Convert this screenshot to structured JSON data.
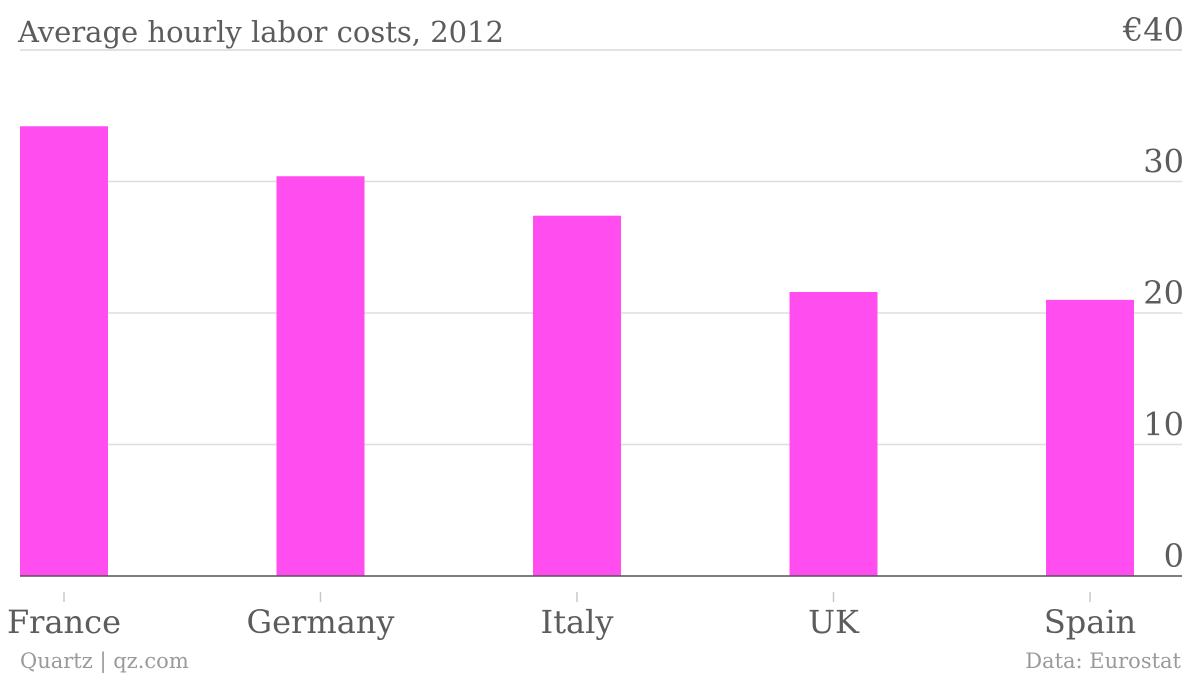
{
  "chart_data": {
    "type": "bar",
    "title": "Average hourly labor costs, 2012",
    "categories": [
      "France",
      "Germany",
      "Italy",
      "UK",
      "Spain"
    ],
    "values": [
      34.2,
      30.4,
      27.4,
      21.6,
      21.0
    ],
    "ylim": [
      0,
      40
    ],
    "y_ticks": [
      0,
      10,
      20,
      30,
      40
    ],
    "y_tick_labels": [
      "0",
      "10",
      "20",
      "30",
      "€40"
    ],
    "bar_color": "#ff4df0",
    "grid": true,
    "y_axis_position": "right"
  },
  "footer": {
    "source_left": "Quartz | qz.com",
    "source_right": "Data: Eurostat"
  }
}
